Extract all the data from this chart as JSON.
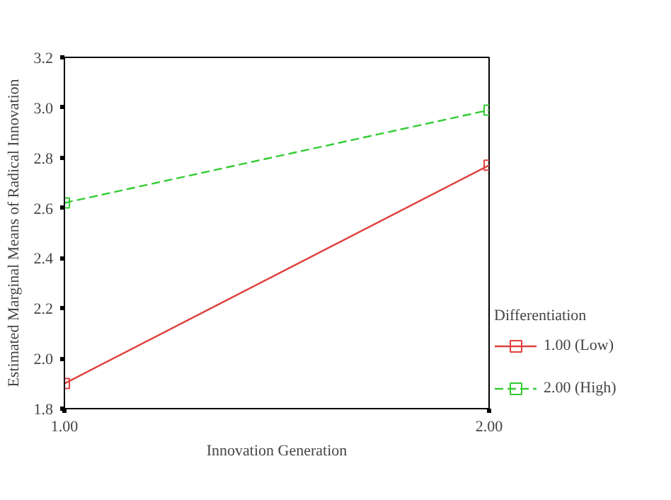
{
  "chart_data": {
    "type": "line",
    "xlabel": "Innovation Generation",
    "ylabel": "Estimated Marginal Means of Radical Innovation",
    "legend_title": "Differentiation",
    "x": [
      1,
      2
    ],
    "series": [
      {
        "name": "1.00 (Low)",
        "color": "#e0403c",
        "values": [
          1.9,
          2.77
        ],
        "line_style": "solid"
      },
      {
        "name": "2.00 (High)",
        "color": "#33cc33",
        "values": [
          2.62,
          2.99
        ],
        "line_style": "dashed"
      }
    ],
    "xlim": [
      1,
      2
    ],
    "xticks": [
      {
        "value": 1,
        "label": "1.00"
      },
      {
        "value": 2,
        "label": "2.00"
      }
    ],
    "ylim": [
      1.8,
      3.2
    ],
    "yticks": [
      {
        "value": 1.8,
        "label": "1.8"
      },
      {
        "value": 2.0,
        "label": "2.0"
      },
      {
        "value": 2.2,
        "label": "2.2"
      },
      {
        "value": 2.4,
        "label": "2.4"
      },
      {
        "value": 2.6,
        "label": "2.6"
      },
      {
        "value": 2.8,
        "label": "2.8"
      },
      {
        "value": 3.0,
        "label": "3.0"
      },
      {
        "value": 3.2,
        "label": "3.2"
      }
    ],
    "marker": "square",
    "grid": false,
    "legend": "right"
  }
}
